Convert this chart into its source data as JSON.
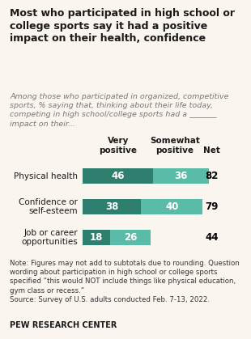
{
  "title": "Most who participated in high school or\ncollege sports say it had a positive\nimpact on their health, confidence",
  "subtitle": "Among those who participated in organized, competitive\nsports, % saying that, thinking about their life today,\ncompeting in high school/college sports had a _______\nimpact on their...",
  "categories": [
    "Physical health",
    "Confidence or\nself-esteem",
    "Job or career\nopportunities"
  ],
  "very_positive": [
    46,
    38,
    18
  ],
  "somewhat_positive": [
    36,
    40,
    26
  ],
  "net": [
    82,
    79,
    44
  ],
  "color_very": "#2e7f6d",
  "color_somewhat": "#5abba8",
  "col_header_very": "Very\npositive",
  "col_header_somewhat": "Somewhat\npositive",
  "col_header_net": "Net",
  "note": "Note: Figures may not add to subtotals due to rounding. Question\nwording about participation in high school or college sports\nspecified “this would NOT include things like physical education,\ngym class or recess.”\nSource: Survey of U.S. adults conducted Feb. 7-13, 2022.",
  "source_label": "PEW RESEARCH CENTER",
  "bg_color": "#faf6ef"
}
